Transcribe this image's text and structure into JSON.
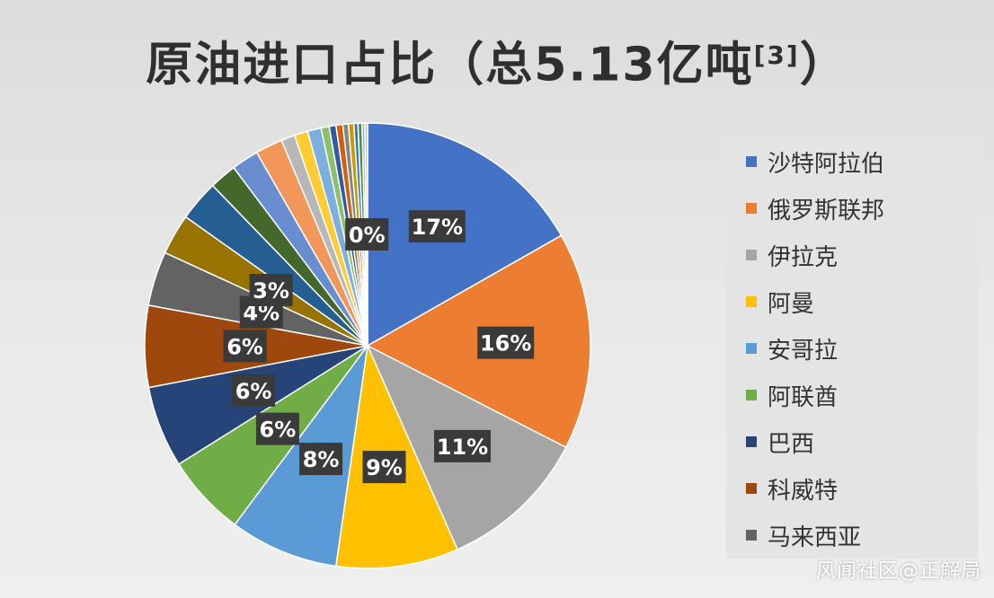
{
  "chart_data": {
    "type": "pie",
    "title_main": "原油进口占比（总5.13亿吨",
    "title_ref": "[3]",
    "title_close": "）",
    "labels": [
      "沙特阿拉伯",
      "俄罗斯联邦",
      "伊拉克",
      "阿曼",
      "安哥拉",
      "阿联酋",
      "巴西",
      "科威特",
      "马来西亚",
      "",
      "",
      "",
      "",
      "",
      "",
      "",
      "",
      "",
      "",
      "",
      "",
      "",
      "",
      "",
      "",
      ""
    ],
    "values": [
      17,
      16,
      11,
      9,
      8,
      6,
      6,
      6,
      4,
      3,
      3,
      2,
      2,
      2,
      1,
      1,
      1,
      0.6,
      0.5,
      0.5,
      0.4,
      0.4,
      0.3,
      0.3,
      0.2,
      0.2
    ],
    "data_labels": [
      "17%",
      "16%",
      "11%",
      "9%",
      "8%",
      "6%",
      "6%",
      "6%",
      "4%",
      "3%",
      "",
      "",
      "",
      "",
      "",
      "",
      "",
      "",
      "",
      "",
      "",
      "",
      "",
      "",
      "",
      "0%"
    ],
    "colors": [
      "#4472c4",
      "#ed7d31",
      "#a5a5a5",
      "#ffc000",
      "#5b9bd5",
      "#70ad47",
      "#264478",
      "#9e480e",
      "#636363",
      "#997300",
      "#255e91",
      "#43682b",
      "#698ed0",
      "#f1975a",
      "#b7b7b7",
      "#ffcd33",
      "#7cafdd",
      "#8cc168",
      "#335aa1",
      "#d26012",
      "#848484",
      "#cc9a00",
      "#327dc2",
      "#5a8a39",
      "#8faadc",
      "#c9c0a8"
    ],
    "legend_visible": [
      "沙特阿拉伯",
      "俄罗斯联邦",
      "伊拉克",
      "阿曼",
      "安哥拉",
      "阿联酋",
      "巴西",
      "科威特",
      "马来西亚"
    ],
    "legend_placement": "right"
  },
  "watermark": "风闻社区@正解局"
}
